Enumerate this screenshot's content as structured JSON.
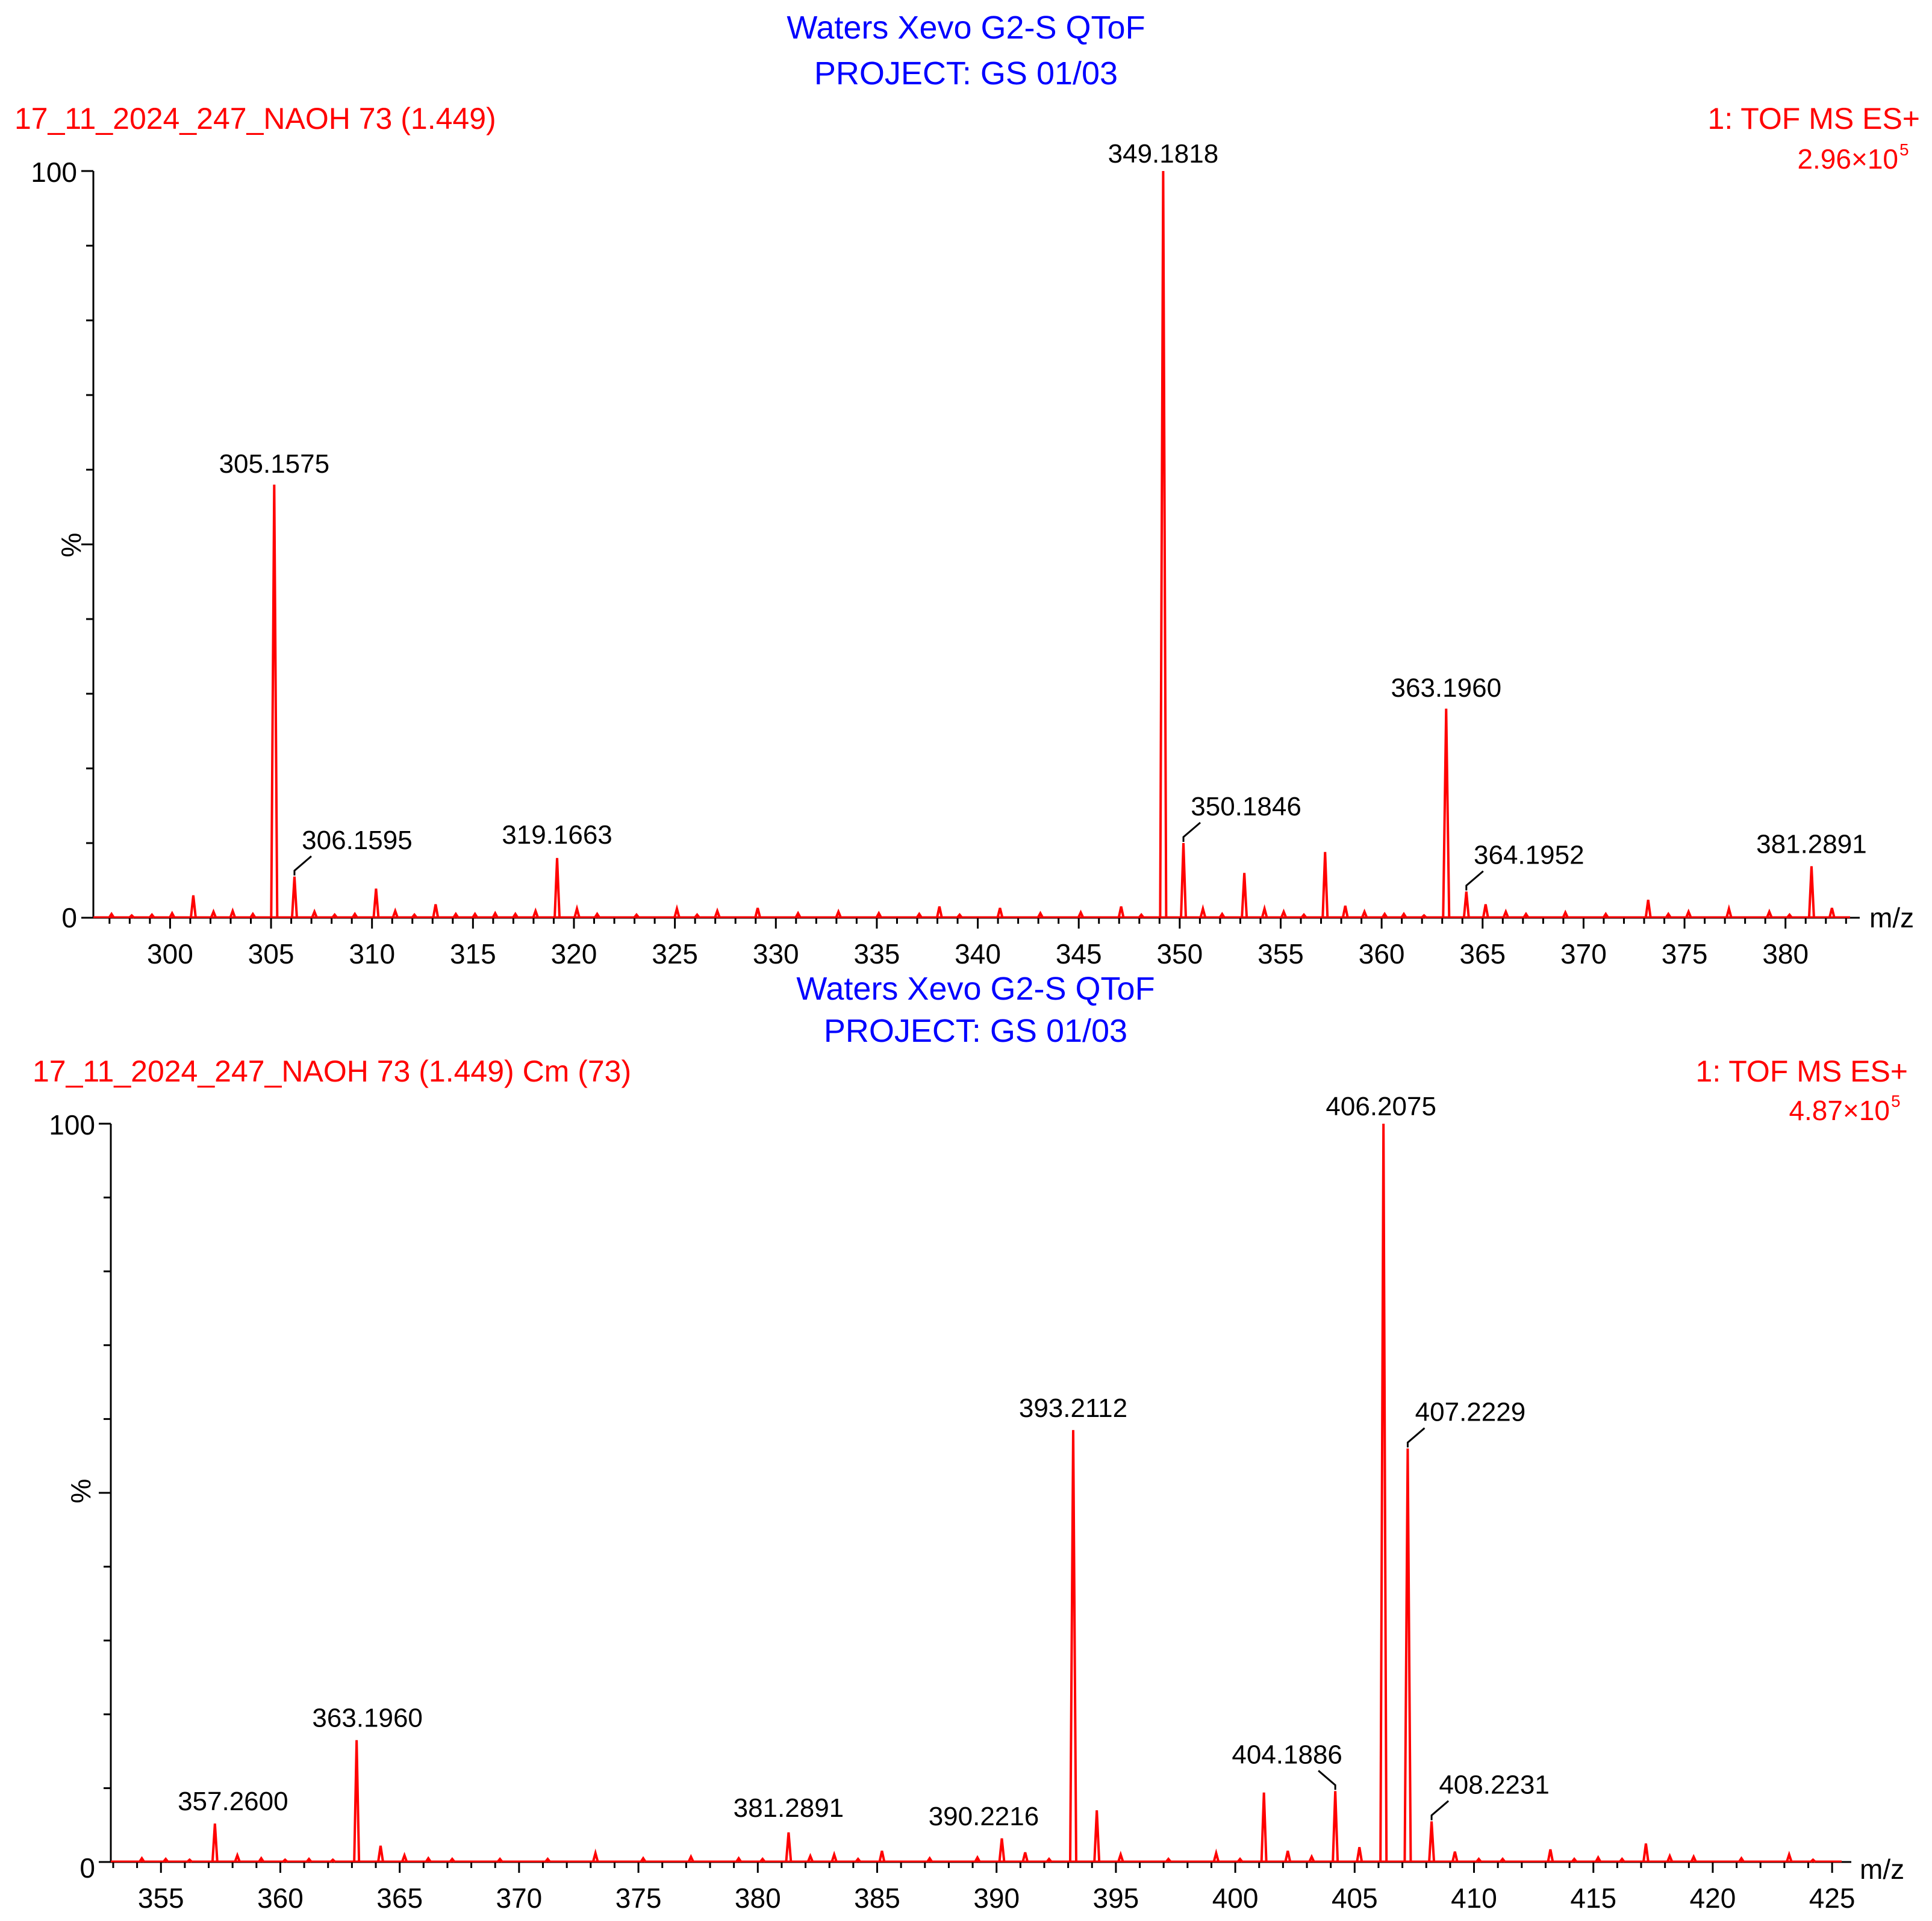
{
  "colors": {
    "trace": "#ff0000",
    "header": "#0000ff",
    "meta": "#ff0000",
    "axis": "#000000",
    "text": "#000000"
  },
  "chart_data": [
    {
      "type": "line",
      "instrument": "Waters Xevo G2-S QToF",
      "project": "PROJECT: GS 01/03",
      "sample": "17_11_2024_247_NAOH 73 (1.449)",
      "scan_function": "1: TOF MS ES+",
      "intensity_mantissa": "2.96×10",
      "intensity_exponent": "5",
      "xlabel": "m/z",
      "ylabel": "%",
      "y_top_label": "100",
      "y_zero_label": "0",
      "xlim": [
        296.2,
        383.2
      ],
      "ylim": [
        0,
        100
      ],
      "x_ticks": [
        300,
        305,
        310,
        315,
        320,
        325,
        330,
        335,
        340,
        345,
        350,
        355,
        360,
        365,
        370,
        375,
        380
      ],
      "x_tick_labels": [
        "300",
        "305",
        "310",
        "315",
        "320",
        "325",
        "330",
        "335",
        "340",
        "345",
        "350",
        "355",
        "360",
        "365",
        "370",
        "375",
        "380"
      ],
      "peaks": [
        {
          "mz": 297.1,
          "rel": 0.5
        },
        {
          "mz": 298.1,
          "rel": 0.3
        },
        {
          "mz": 299.1,
          "rel": 0.4
        },
        {
          "mz": 300.1,
          "rel": 0.6
        },
        {
          "mz": 301.15,
          "rel": 3.0
        },
        {
          "mz": 302.15,
          "rel": 0.8
        },
        {
          "mz": 303.1,
          "rel": 0.9
        },
        {
          "mz": 304.1,
          "rel": 0.5
        },
        {
          "mz": 305.1575,
          "rel": 58.0,
          "label": "305.1575"
        },
        {
          "mz": 306.1595,
          "rel": 5.5,
          "label": "306.1595"
        },
        {
          "mz": 307.15,
          "rel": 0.8
        },
        {
          "mz": 308.15,
          "rel": 0.4
        },
        {
          "mz": 309.15,
          "rel": 0.5
        },
        {
          "mz": 310.2,
          "rel": 3.9
        },
        {
          "mz": 311.15,
          "rel": 0.9
        },
        {
          "mz": 312.1,
          "rel": 0.4
        },
        {
          "mz": 313.15,
          "rel": 1.8
        },
        {
          "mz": 314.15,
          "rel": 0.5
        },
        {
          "mz": 315.1,
          "rel": 0.5
        },
        {
          "mz": 316.1,
          "rel": 0.6
        },
        {
          "mz": 317.1,
          "rel": 0.5
        },
        {
          "mz": 318.1,
          "rel": 0.9
        },
        {
          "mz": 319.1663,
          "rel": 8.0,
          "label": "319.1663"
        },
        {
          "mz": 320.15,
          "rel": 1.2
        },
        {
          "mz": 321.15,
          "rel": 0.5
        },
        {
          "mz": 323.1,
          "rel": 0.4
        },
        {
          "mz": 325.1,
          "rel": 1.2
        },
        {
          "mz": 326.1,
          "rel": 0.4
        },
        {
          "mz": 327.1,
          "rel": 0.9
        },
        {
          "mz": 329.1,
          "rel": 1.3
        },
        {
          "mz": 331.1,
          "rel": 0.6
        },
        {
          "mz": 333.1,
          "rel": 0.8
        },
        {
          "mz": 335.1,
          "rel": 0.6
        },
        {
          "mz": 337.1,
          "rel": 0.5
        },
        {
          "mz": 338.1,
          "rel": 1.5
        },
        {
          "mz": 339.1,
          "rel": 0.4
        },
        {
          "mz": 341.1,
          "rel": 1.3
        },
        {
          "mz": 343.1,
          "rel": 0.6
        },
        {
          "mz": 345.1,
          "rel": 0.7
        },
        {
          "mz": 347.1,
          "rel": 1.5
        },
        {
          "mz": 348.1,
          "rel": 0.4
        },
        {
          "mz": 349.1818,
          "rel": 100.0,
          "label": "349.1818"
        },
        {
          "mz": 350.1846,
          "rel": 10.0,
          "label": "350.1846"
        },
        {
          "mz": 351.15,
          "rel": 1.2
        },
        {
          "mz": 352.1,
          "rel": 0.5
        },
        {
          "mz": 353.2,
          "rel": 6.0
        },
        {
          "mz": 354.2,
          "rel": 1.2
        },
        {
          "mz": 355.15,
          "rel": 0.8
        },
        {
          "mz": 356.15,
          "rel": 0.4
        },
        {
          "mz": 357.2,
          "rel": 8.8
        },
        {
          "mz": 358.2,
          "rel": 1.6
        },
        {
          "mz": 359.15,
          "rel": 0.8
        },
        {
          "mz": 360.15,
          "rel": 0.5
        },
        {
          "mz": 361.1,
          "rel": 0.5
        },
        {
          "mz": 362.1,
          "rel": 0.3
        },
        {
          "mz": 363.196,
          "rel": 28.0,
          "label": "363.1960"
        },
        {
          "mz": 364.1952,
          "rel": 3.5,
          "label": "364.1952"
        },
        {
          "mz": 365.15,
          "rel": 1.8
        },
        {
          "mz": 366.15,
          "rel": 0.8
        },
        {
          "mz": 367.15,
          "rel": 0.5
        },
        {
          "mz": 369.1,
          "rel": 0.7
        },
        {
          "mz": 371.1,
          "rel": 0.5
        },
        {
          "mz": 373.2,
          "rel": 2.4
        },
        {
          "mz": 374.2,
          "rel": 0.5
        },
        {
          "mz": 375.2,
          "rel": 0.8
        },
        {
          "mz": 377.2,
          "rel": 1.2
        },
        {
          "mz": 379.2,
          "rel": 0.8
        },
        {
          "mz": 380.2,
          "rel": 0.4
        },
        {
          "mz": 381.2891,
          "rel": 6.9,
          "label": "381.2891"
        },
        {
          "mz": 382.3,
          "rel": 1.3
        }
      ]
    },
    {
      "type": "line",
      "instrument": "Waters Xevo G2-S QToF",
      "project": "PROJECT: GS 01/03",
      "sample": "17_11_2024_247_NAOH 73 (1.449) Cm (73)",
      "scan_function": "1: TOF MS ES+",
      "intensity_mantissa": "4.87×10",
      "intensity_exponent": "5",
      "xlabel": "m/z",
      "ylabel": "%",
      "y_top_label": "100",
      "y_zero_label": "0",
      "xlim": [
        352.9,
        425.4
      ],
      "ylim": [
        0,
        100
      ],
      "x_ticks": [
        355,
        360,
        365,
        370,
        375,
        380,
        385,
        390,
        395,
        400,
        405,
        410,
        415,
        420,
        425
      ],
      "x_tick_labels": [
        "355",
        "360",
        "365",
        "370",
        "375",
        "380",
        "385",
        "390",
        "395",
        "400",
        "405",
        "410",
        "415",
        "420",
        "425"
      ],
      "peaks": [
        {
          "mz": 354.2,
          "rel": 0.5
        },
        {
          "mz": 355.2,
          "rel": 0.4
        },
        {
          "mz": 356.2,
          "rel": 0.3
        },
        {
          "mz": 357.26,
          "rel": 5.2,
          "label": "357.2600"
        },
        {
          "mz": 358.2,
          "rel": 0.9
        },
        {
          "mz": 359.2,
          "rel": 0.5
        },
        {
          "mz": 360.2,
          "rel": 0.3
        },
        {
          "mz": 361.2,
          "rel": 0.4
        },
        {
          "mz": 362.2,
          "rel": 0.3
        },
        {
          "mz": 363.196,
          "rel": 16.5,
          "label": "363.1960"
        },
        {
          "mz": 364.2,
          "rel": 2.2
        },
        {
          "mz": 365.2,
          "rel": 0.9
        },
        {
          "mz": 366.2,
          "rel": 0.5
        },
        {
          "mz": 367.2,
          "rel": 0.4
        },
        {
          "mz": 369.2,
          "rel": 0.4
        },
        {
          "mz": 371.2,
          "rel": 0.4
        },
        {
          "mz": 373.2,
          "rel": 1.2
        },
        {
          "mz": 375.2,
          "rel": 0.5
        },
        {
          "mz": 377.2,
          "rel": 0.7
        },
        {
          "mz": 379.2,
          "rel": 0.5
        },
        {
          "mz": 380.2,
          "rel": 0.4
        },
        {
          "mz": 381.2891,
          "rel": 4.0,
          "label": "381.2891"
        },
        {
          "mz": 382.2,
          "rel": 0.8
        },
        {
          "mz": 383.2,
          "rel": 1.0
        },
        {
          "mz": 384.2,
          "rel": 0.4
        },
        {
          "mz": 385.2,
          "rel": 1.5
        },
        {
          "mz": 387.2,
          "rel": 0.5
        },
        {
          "mz": 389.2,
          "rel": 0.6
        },
        {
          "mz": 390.2216,
          "rel": 3.2,
          "label": "390.2216"
        },
        {
          "mz": 391.2,
          "rel": 1.3
        },
        {
          "mz": 392.2,
          "rel": 0.4
        },
        {
          "mz": 393.2112,
          "rel": 58.5,
          "label": "393.2112"
        },
        {
          "mz": 394.2,
          "rel": 7.0
        },
        {
          "mz": 395.2,
          "rel": 1.0
        },
        {
          "mz": 397.2,
          "rel": 0.4
        },
        {
          "mz": 399.2,
          "rel": 1.2
        },
        {
          "mz": 400.2,
          "rel": 0.4
        },
        {
          "mz": 401.2,
          "rel": 9.4
        },
        {
          "mz": 402.2,
          "rel": 1.5
        },
        {
          "mz": 403.2,
          "rel": 0.7
        },
        {
          "mz": 404.1886,
          "rel": 9.6,
          "label": "404.1886"
        },
        {
          "mz": 405.2,
          "rel": 2.0
        },
        {
          "mz": 406.2075,
          "rel": 100.0,
          "label": "406.2075"
        },
        {
          "mz": 407.2229,
          "rel": 56.0,
          "label": "407.2229"
        },
        {
          "mz": 408.2231,
          "rel": 5.5,
          "label": "408.2231"
        },
        {
          "mz": 409.2,
          "rel": 1.4
        },
        {
          "mz": 410.2,
          "rel": 0.4
        },
        {
          "mz": 411.2,
          "rel": 0.4
        },
        {
          "mz": 413.2,
          "rel": 1.7
        },
        {
          "mz": 414.2,
          "rel": 0.4
        },
        {
          "mz": 415.2,
          "rel": 0.6
        },
        {
          "mz": 416.2,
          "rel": 0.4
        },
        {
          "mz": 417.2,
          "rel": 2.5
        },
        {
          "mz": 418.2,
          "rel": 0.8
        },
        {
          "mz": 419.2,
          "rel": 0.7
        },
        {
          "mz": 421.2,
          "rel": 0.5
        },
        {
          "mz": 423.2,
          "rel": 1.0
        },
        {
          "mz": 424.2,
          "rel": 0.3
        }
      ]
    }
  ]
}
